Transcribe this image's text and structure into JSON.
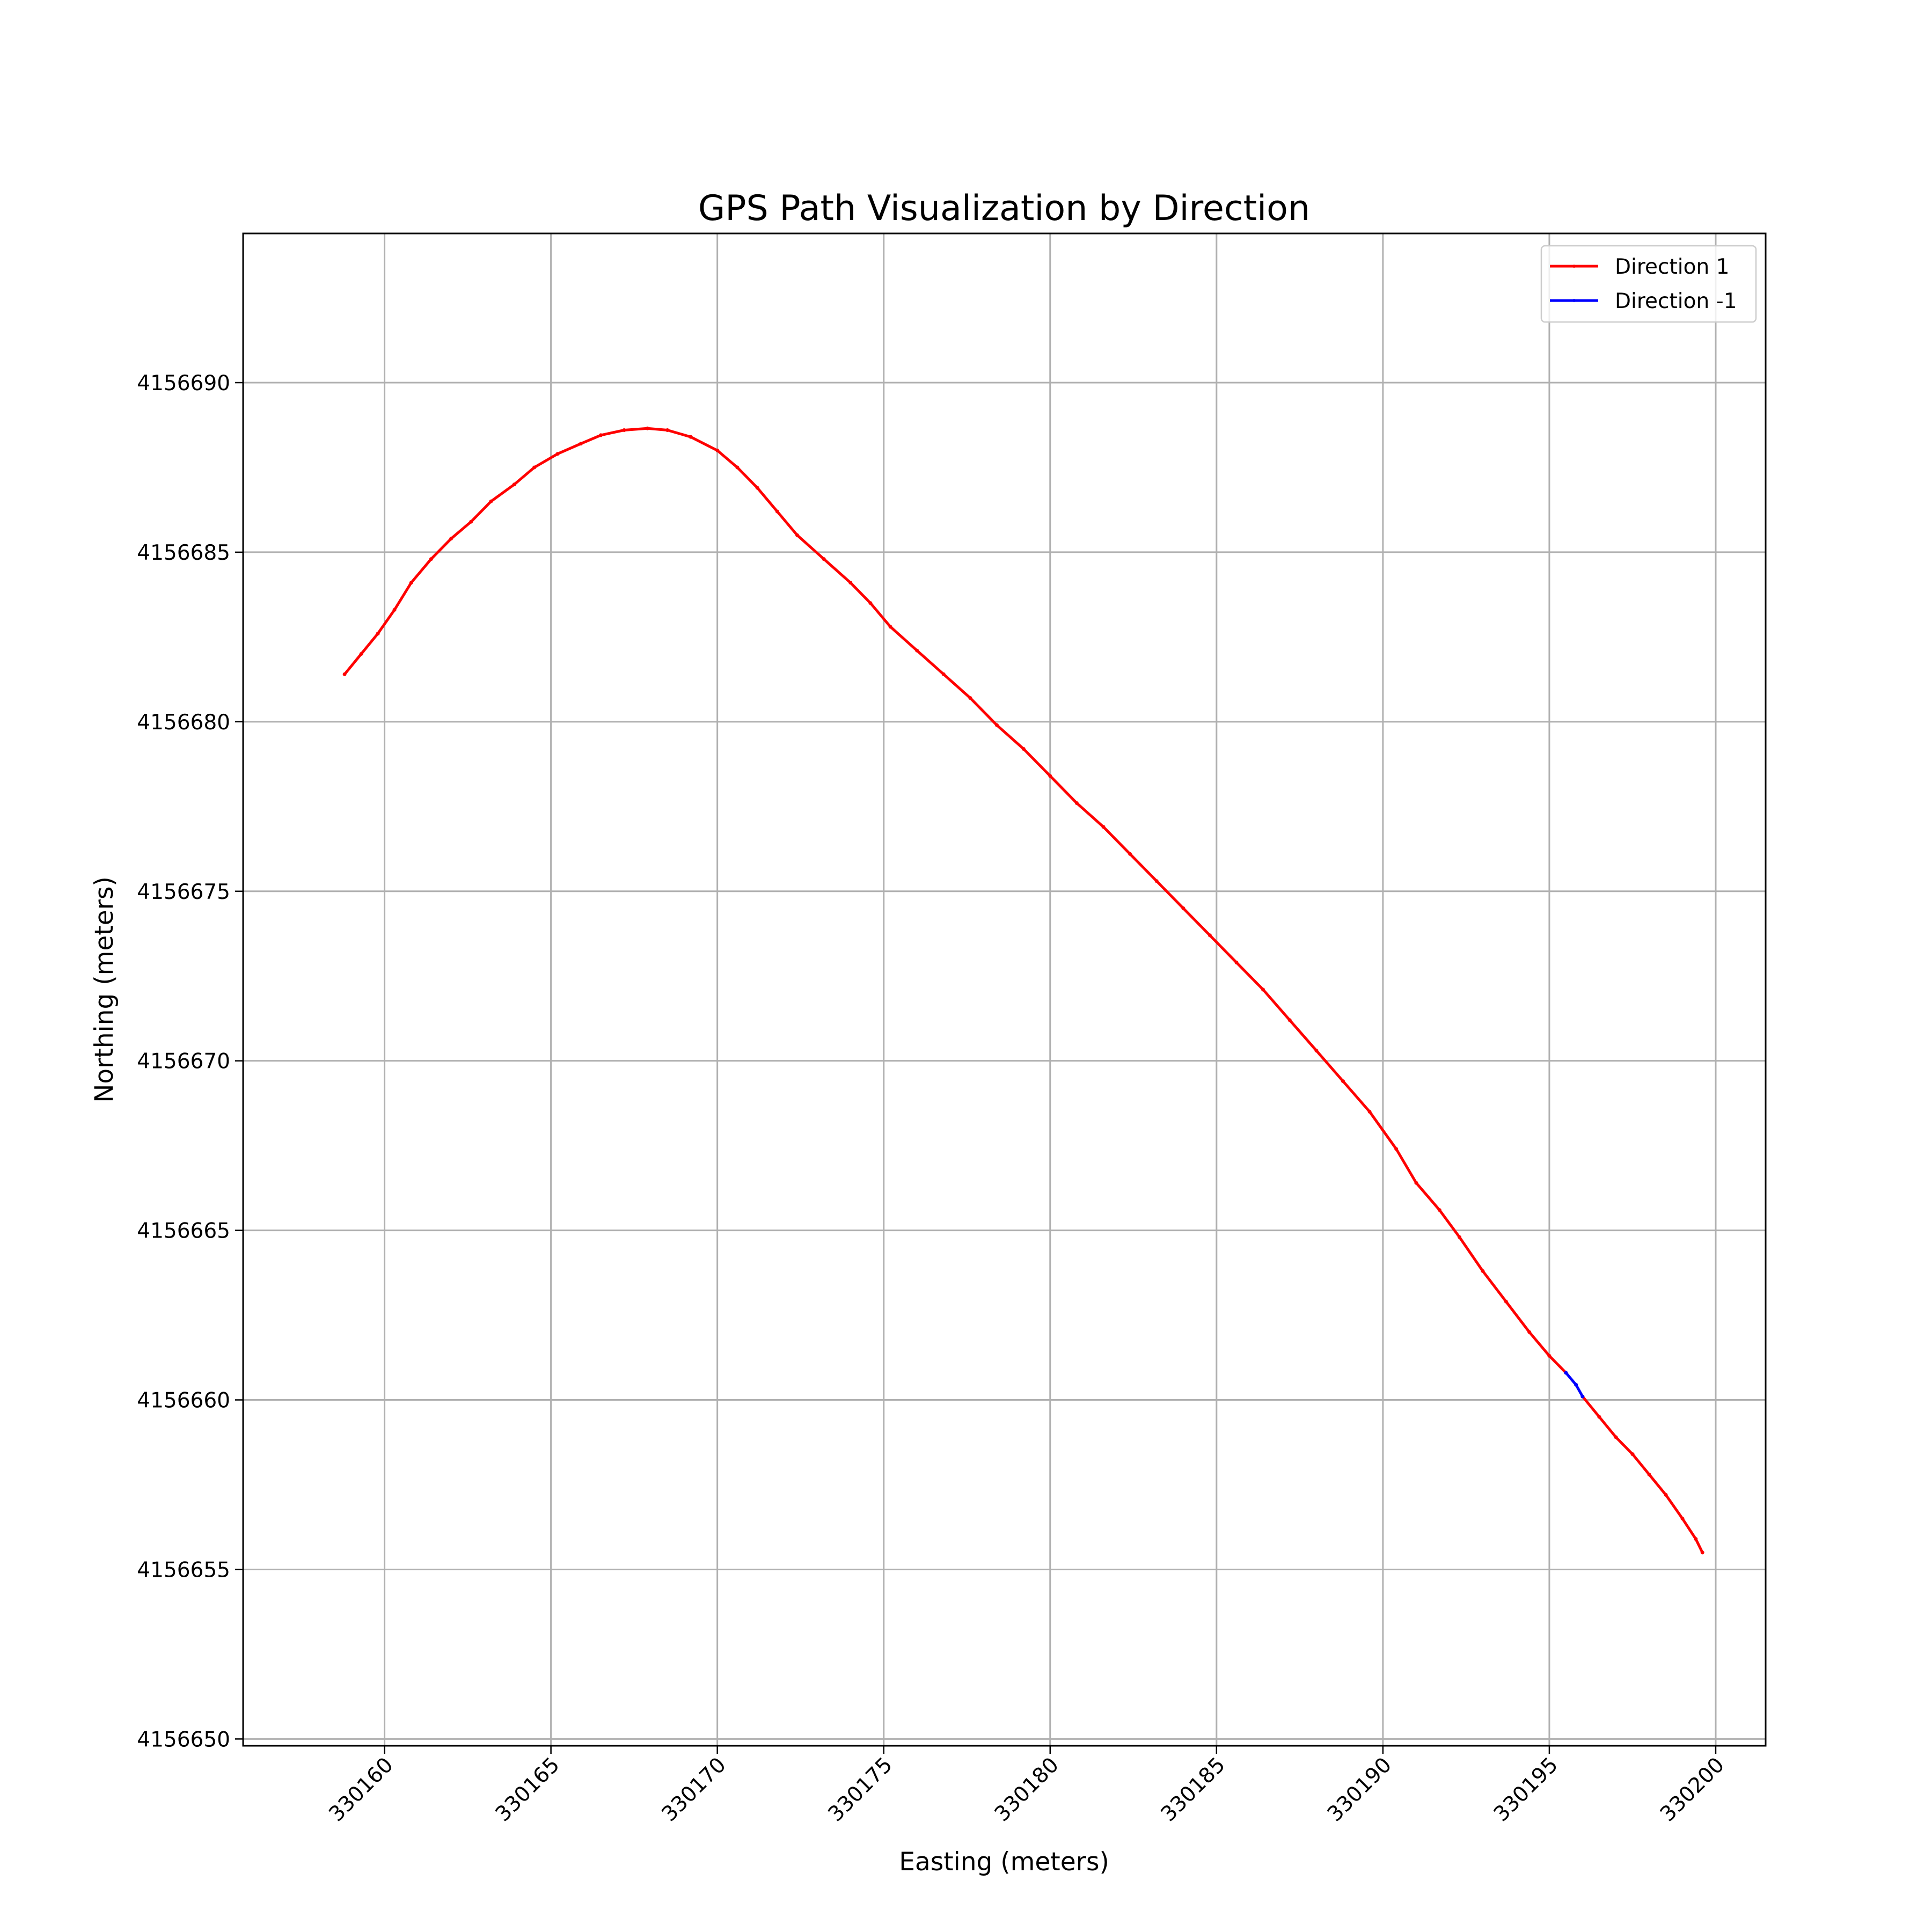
{
  "chart_data": {
    "type": "line",
    "title": "GPS Path Visualization by Direction",
    "xlabel": "Easting (meters)",
    "ylabel": "Northing (meters)",
    "xlim": [
      330155.75,
      330201.5
    ],
    "ylim": [
      4156649.8,
      4156694.4
    ],
    "xticks": [
      330160,
      330165,
      330170,
      330175,
      330180,
      330185,
      330190,
      330195,
      330200
    ],
    "xtick_labels": [
      "330160",
      "330165",
      "330170",
      "330175",
      "330180",
      "330185",
      "330190",
      "330195",
      "330200"
    ],
    "yticks": [
      4156650,
      4156655,
      4156660,
      4156665,
      4156670,
      4156675,
      4156680,
      4156685,
      4156690
    ],
    "ytick_labels": [
      "4156650",
      "4156655",
      "4156660",
      "4156665",
      "4156670",
      "4156675",
      "4156680",
      "4156685",
      "4156690"
    ],
    "xtick_rotation_deg": 45,
    "grid": true,
    "legend_position": "top-right",
    "series": [
      {
        "name": "Direction 1",
        "color": "#ff0000",
        "segments": [
          [
            [
              330158.8,
              4156681.4
            ],
            [
              330159.3,
              4156682.0
            ],
            [
              330159.8,
              4156682.6
            ],
            [
              330160.3,
              4156683.3
            ],
            [
              330160.8,
              4156684.1
            ],
            [
              330161.4,
              4156684.8
            ],
            [
              330162.0,
              4156685.4
            ],
            [
              330162.6,
              4156685.9
            ],
            [
              330163.2,
              4156686.5
            ],
            [
              330163.9,
              4156687.0
            ],
            [
              330164.5,
              4156687.5
            ],
            [
              330165.2,
              4156687.9
            ],
            [
              330165.9,
              4156688.2
            ],
            [
              330166.5,
              4156688.45
            ],
            [
              330167.2,
              4156688.6
            ],
            [
              330167.9,
              4156688.65
            ],
            [
              330168.5,
              4156688.6
            ],
            [
              330169.2,
              4156688.4
            ],
            [
              330170.0,
              4156688.0
            ],
            [
              330170.6,
              4156687.5
            ],
            [
              330171.2,
              4156686.9
            ],
            [
              330171.8,
              4156686.2
            ],
            [
              330172.4,
              4156685.5
            ],
            [
              330173.2,
              4156684.8
            ],
            [
              330174.0,
              4156684.1
            ],
            [
              330174.6,
              4156683.5
            ],
            [
              330175.2,
              4156682.8
            ],
            [
              330176.0,
              4156682.1
            ],
            [
              330176.8,
              4156681.4
            ],
            [
              330177.6,
              4156680.7
            ],
            [
              330178.4,
              4156679.9
            ],
            [
              330179.2,
              4156679.2
            ],
            [
              330180.0,
              4156678.4
            ],
            [
              330180.8,
              4156677.6
            ],
            [
              330181.6,
              4156676.9
            ],
            [
              330182.4,
              4156676.1
            ],
            [
              330183.2,
              4156675.3
            ],
            [
              330184.0,
              4156674.5
            ],
            [
              330184.8,
              4156673.7
            ],
            [
              330185.6,
              4156672.9
            ],
            [
              330186.4,
              4156672.1
            ],
            [
              330187.2,
              4156671.2
            ],
            [
              330188.0,
              4156670.3
            ],
            [
              330188.8,
              4156669.4
            ],
            [
              330189.6,
              4156668.5
            ],
            [
              330190.4,
              4156667.4
            ],
            [
              330191.0,
              4156666.4
            ],
            [
              330191.7,
              4156665.6
            ],
            [
              330192.3,
              4156664.8
            ],
            [
              330193.0,
              4156663.8
            ],
            [
              330193.7,
              4156662.9
            ],
            [
              330194.4,
              4156662.0
            ],
            [
              330195.0,
              4156661.3
            ],
            [
              330195.5,
              4156660.8
            ]
          ],
          [
            [
              330196.0,
              4156660.1
            ],
            [
              330196.5,
              4156659.5
            ],
            [
              330197.0,
              4156658.9
            ],
            [
              330197.5,
              4156658.4
            ],
            [
              330198.0,
              4156657.8
            ],
            [
              330198.5,
              4156657.2
            ],
            [
              330199.0,
              4156656.5
            ],
            [
              330199.4,
              4156655.9
            ],
            [
              330199.6,
              4156655.5
            ]
          ]
        ]
      },
      {
        "name": "Direction -1",
        "color": "#0000ff",
        "segments": [
          [
            [
              330195.5,
              4156660.8
            ],
            [
              330195.8,
              4156660.45
            ],
            [
              330196.0,
              4156660.1
            ]
          ]
        ]
      }
    ]
  }
}
